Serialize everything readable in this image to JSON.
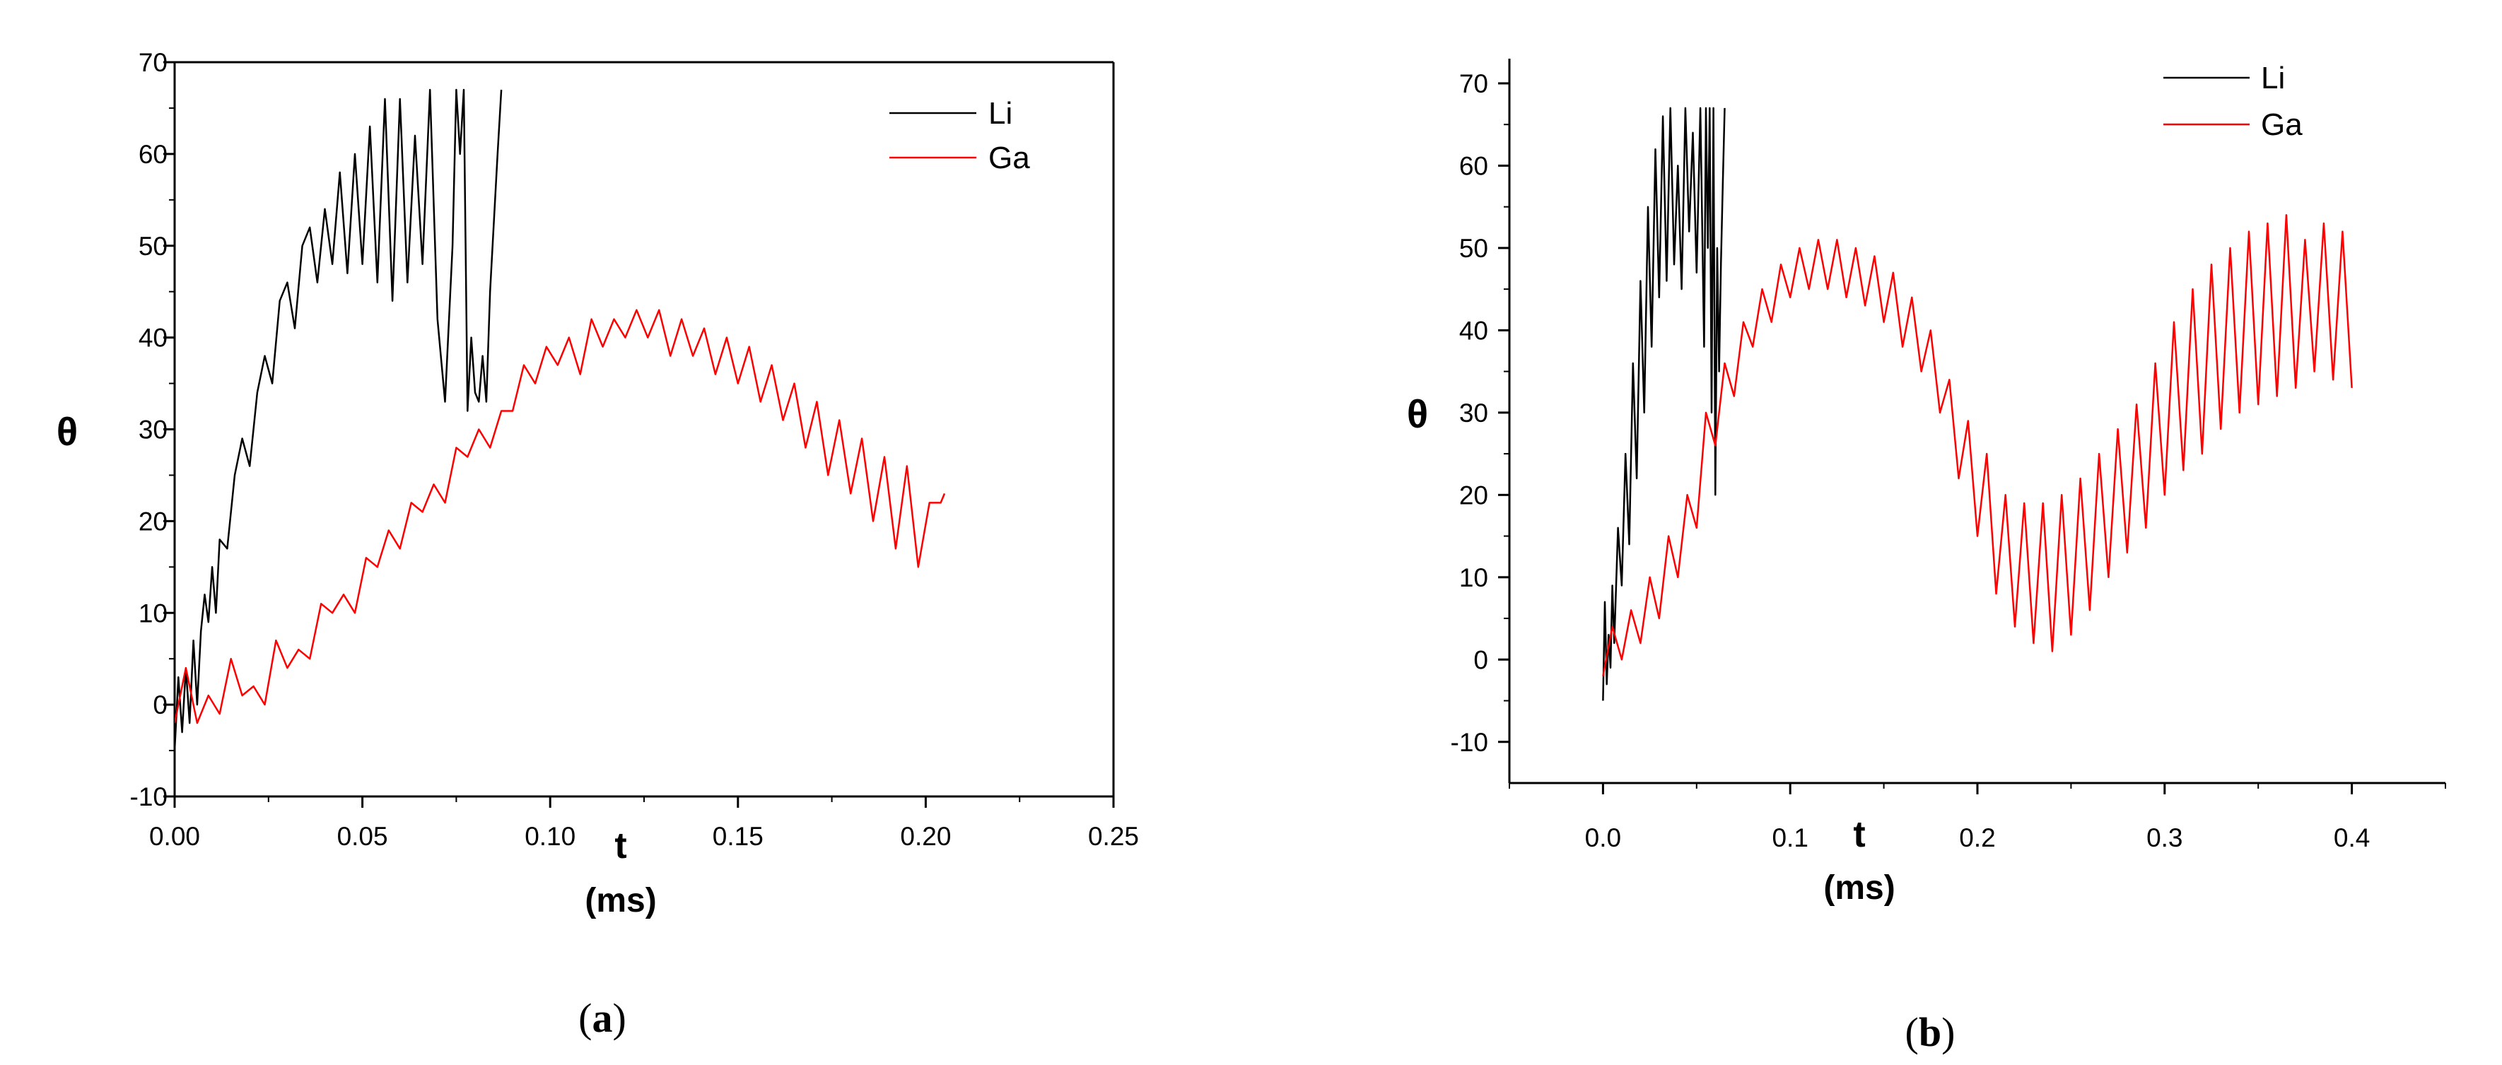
{
  "chart_data": [
    {
      "panel": "a",
      "type": "line",
      "xlabel": "t",
      "xunit": "(ms)",
      "ylabel": "θ",
      "xlim": [
        0,
        0.25
      ],
      "ylim": [
        -10,
        70
      ],
      "xticks": [
        "0.00",
        "0.05",
        "0.10",
        "0.15",
        "0.20",
        "0.25"
      ],
      "xtick_values": [
        0,
        0.05,
        0.1,
        0.15,
        0.2,
        0.25
      ],
      "yticks": [
        -10,
        0,
        10,
        20,
        30,
        40,
        50,
        60,
        70
      ],
      "legend_position": "top-right",
      "caption": {
        "open": "(",
        "letter": "a",
        "close": ")"
      },
      "series": [
        {
          "name": "Li",
          "color": "#000000",
          "x": [
            0.0,
            0.001,
            0.002,
            0.003,
            0.004,
            0.005,
            0.006,
            0.007,
            0.008,
            0.009,
            0.01,
            0.011,
            0.012,
            0.014,
            0.016,
            0.018,
            0.02,
            0.022,
            0.024,
            0.026,
            0.028,
            0.03,
            0.032,
            0.034,
            0.036,
            0.038,
            0.04,
            0.042,
            0.044,
            0.046,
            0.048,
            0.05,
            0.052,
            0.054,
            0.056,
            0.058,
            0.06,
            0.062,
            0.064,
            0.066,
            0.068,
            0.07,
            0.072,
            0.074,
            0.075,
            0.076,
            0.077,
            0.078,
            0.079,
            0.08,
            0.081,
            0.082,
            0.083,
            0.084,
            0.086,
            0.087
          ],
          "y": [
            -5,
            3,
            -3,
            4,
            -2,
            7,
            0,
            8,
            12,
            9,
            15,
            10,
            18,
            17,
            25,
            29,
            26,
            34,
            38,
            35,
            44,
            46,
            41,
            50,
            52,
            46,
            54,
            48,
            58,
            47,
            60,
            48,
            63,
            46,
            66,
            44,
            66,
            46,
            62,
            48,
            67,
            42,
            33,
            50,
            67,
            60,
            67,
            32,
            40,
            34,
            33,
            38,
            33,
            45,
            60,
            67
          ]
        },
        {
          "name": "Ga",
          "color": "#ff0000",
          "x": [
            0.0,
            0.003,
            0.006,
            0.009,
            0.012,
            0.015,
            0.018,
            0.021,
            0.024,
            0.027,
            0.03,
            0.033,
            0.036,
            0.039,
            0.042,
            0.045,
            0.048,
            0.051,
            0.054,
            0.057,
            0.06,
            0.063,
            0.066,
            0.069,
            0.072,
            0.075,
            0.078,
            0.081,
            0.084,
            0.087,
            0.09,
            0.093,
            0.096,
            0.099,
            0.102,
            0.105,
            0.108,
            0.111,
            0.114,
            0.117,
            0.12,
            0.123,
            0.126,
            0.129,
            0.132,
            0.135,
            0.138,
            0.141,
            0.144,
            0.147,
            0.15,
            0.153,
            0.156,
            0.159,
            0.162,
            0.165,
            0.168,
            0.171,
            0.174,
            0.177,
            0.18,
            0.183,
            0.186,
            0.189,
            0.192,
            0.195,
            0.198,
            0.201,
            0.204,
            0.205
          ],
          "y": [
            -2,
            4,
            -2,
            1,
            -1,
            5,
            1,
            2,
            0,
            7,
            4,
            6,
            5,
            11,
            10,
            12,
            10,
            16,
            15,
            19,
            17,
            22,
            21,
            24,
            22,
            28,
            27,
            30,
            28,
            32,
            32,
            37,
            35,
            39,
            37,
            40,
            36,
            42,
            39,
            42,
            40,
            43,
            40,
            43,
            38,
            42,
            38,
            41,
            36,
            40,
            35,
            39,
            33,
            37,
            31,
            35,
            28,
            33,
            25,
            31,
            23,
            29,
            20,
            27,
            17,
            26,
            15,
            22,
            22,
            23
          ]
        }
      ]
    },
    {
      "panel": "b",
      "type": "line",
      "xlabel": "t",
      "xunit": "(ms)",
      "ylabel": "θ",
      "xlim": [
        -0.05,
        0.45
      ],
      "ylim": [
        -15,
        73
      ],
      "xticks": [
        "0.0",
        "0.1",
        "0.2",
        "0.3",
        "0.4"
      ],
      "xtick_values": [
        0,
        0.1,
        0.2,
        0.3,
        0.4
      ],
      "yticks": [
        -10,
        0,
        10,
        20,
        30,
        40,
        50,
        60,
        70
      ],
      "legend_position": "top-right",
      "caption": {
        "open": "(",
        "letter": "b",
        "close": ")"
      },
      "series": [
        {
          "name": "Li",
          "color": "#000000",
          "x": [
            0.0,
            0.001,
            0.002,
            0.003,
            0.004,
            0.005,
            0.006,
            0.008,
            0.01,
            0.012,
            0.014,
            0.016,
            0.018,
            0.02,
            0.022,
            0.024,
            0.026,
            0.028,
            0.03,
            0.032,
            0.034,
            0.036,
            0.038,
            0.04,
            0.042,
            0.044,
            0.046,
            0.048,
            0.05,
            0.052,
            0.054,
            0.055,
            0.056,
            0.057,
            0.058,
            0.059,
            0.06,
            0.061,
            0.062,
            0.063,
            0.064,
            0.065
          ],
          "y": [
            -5,
            7,
            -3,
            3,
            -1,
            9,
            2,
            16,
            9,
            25,
            14,
            36,
            22,
            46,
            30,
            55,
            38,
            62,
            44,
            66,
            46,
            67,
            48,
            60,
            45,
            67,
            52,
            64,
            47,
            67,
            38,
            67,
            50,
            67,
            30,
            67,
            20,
            50,
            35,
            48,
            58,
            67
          ]
        },
        {
          "name": "Ga",
          "color": "#ff0000",
          "x": [
            0.0,
            0.005,
            0.01,
            0.015,
            0.02,
            0.025,
            0.03,
            0.035,
            0.04,
            0.045,
            0.05,
            0.055,
            0.06,
            0.065,
            0.07,
            0.075,
            0.08,
            0.085,
            0.09,
            0.095,
            0.1,
            0.105,
            0.11,
            0.115,
            0.12,
            0.125,
            0.13,
            0.135,
            0.14,
            0.145,
            0.15,
            0.155,
            0.16,
            0.165,
            0.17,
            0.175,
            0.18,
            0.185,
            0.19,
            0.195,
            0.2,
            0.205,
            0.21,
            0.215,
            0.22,
            0.225,
            0.23,
            0.235,
            0.24,
            0.245,
            0.25,
            0.255,
            0.26,
            0.265,
            0.27,
            0.275,
            0.28,
            0.285,
            0.29,
            0.295,
            0.3,
            0.305,
            0.31,
            0.315,
            0.32,
            0.325,
            0.33,
            0.335,
            0.34,
            0.345,
            0.35,
            0.355,
            0.36,
            0.365,
            0.37,
            0.375,
            0.38,
            0.385,
            0.39,
            0.395,
            0.4
          ],
          "y": [
            -2,
            4,
            0,
            6,
            2,
            10,
            5,
            15,
            10,
            20,
            16,
            30,
            26,
            36,
            32,
            41,
            38,
            45,
            41,
            48,
            44,
            50,
            45,
            51,
            45,
            51,
            44,
            50,
            43,
            49,
            41,
            47,
            38,
            44,
            35,
            40,
            30,
            34,
            22,
            29,
            15,
            25,
            8,
            20,
            4,
            19,
            2,
            19,
            1,
            20,
            3,
            22,
            6,
            25,
            10,
            28,
            13,
            31,
            16,
            36,
            20,
            41,
            23,
            45,
            25,
            48,
            28,
            50,
            30,
            52,
            31,
            53,
            32,
            54,
            33,
            51,
            35,
            53,
            34,
            52,
            33
          ]
        }
      ]
    }
  ]
}
